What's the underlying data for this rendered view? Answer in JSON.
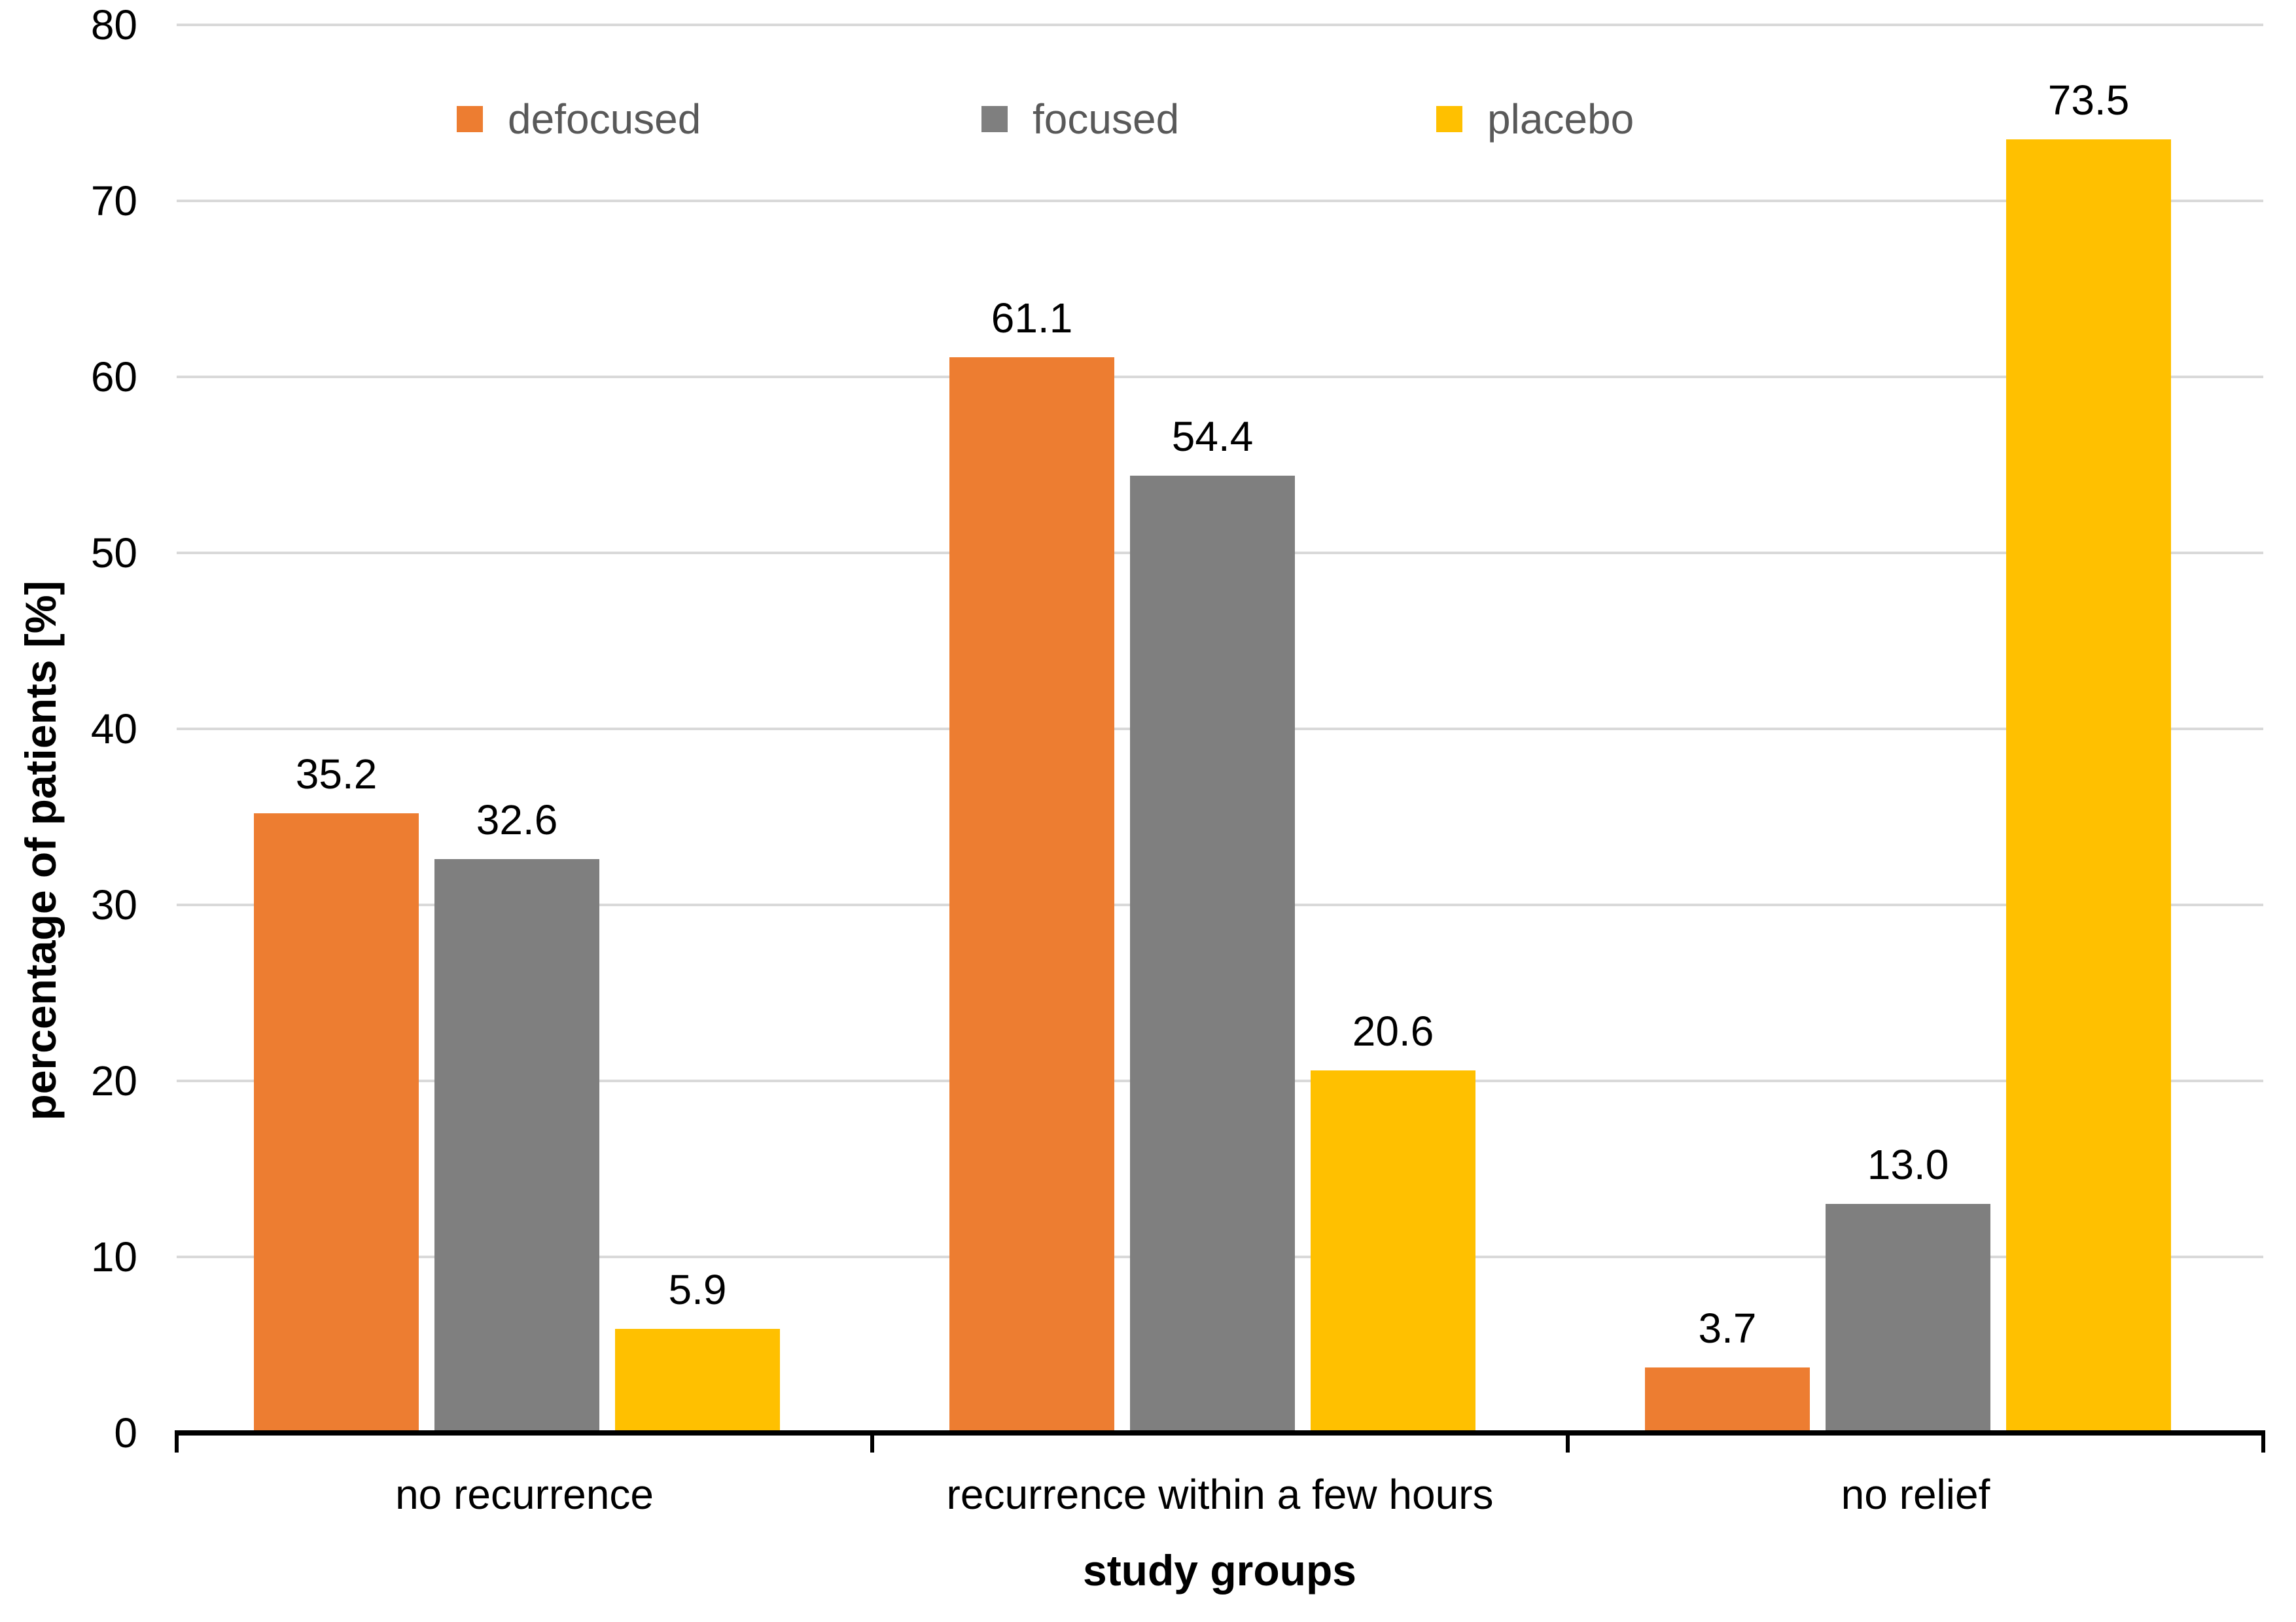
{
  "chart_data": {
    "type": "bar",
    "categories": [
      "no recurrence",
      "recurrence within a few hours",
      "no relief"
    ],
    "series": [
      {
        "name": "defocused",
        "color": "#ED7D31",
        "values": [
          35.2,
          61.1,
          3.7
        ],
        "labels": [
          "35.2",
          "61.1",
          "3.7"
        ]
      },
      {
        "name": "focused",
        "color": "#7F7F7F",
        "values": [
          32.6,
          54.4,
          13.0
        ],
        "labels": [
          "32.6",
          "54.4",
          "13.0"
        ]
      },
      {
        "name": "placebo",
        "color": "#FFC000",
        "values": [
          5.9,
          20.6,
          73.5
        ],
        "labels": [
          "5.9",
          "20.6",
          "73.5"
        ]
      }
    ],
    "xlabel": "study groups",
    "ylabel": "percentage of patients [%]",
    "ylim": [
      0,
      80
    ],
    "ytick_step": 10,
    "yticks": [
      "0",
      "10",
      "20",
      "30",
      "40",
      "50",
      "60",
      "70",
      "80"
    ],
    "grid": true,
    "legend_position": "top"
  },
  "colors": {
    "gridline": "#D9D9D9",
    "axis": "#000000",
    "data_label": "#000000",
    "legend_text": "#595959",
    "background": "#FFFFFF"
  }
}
